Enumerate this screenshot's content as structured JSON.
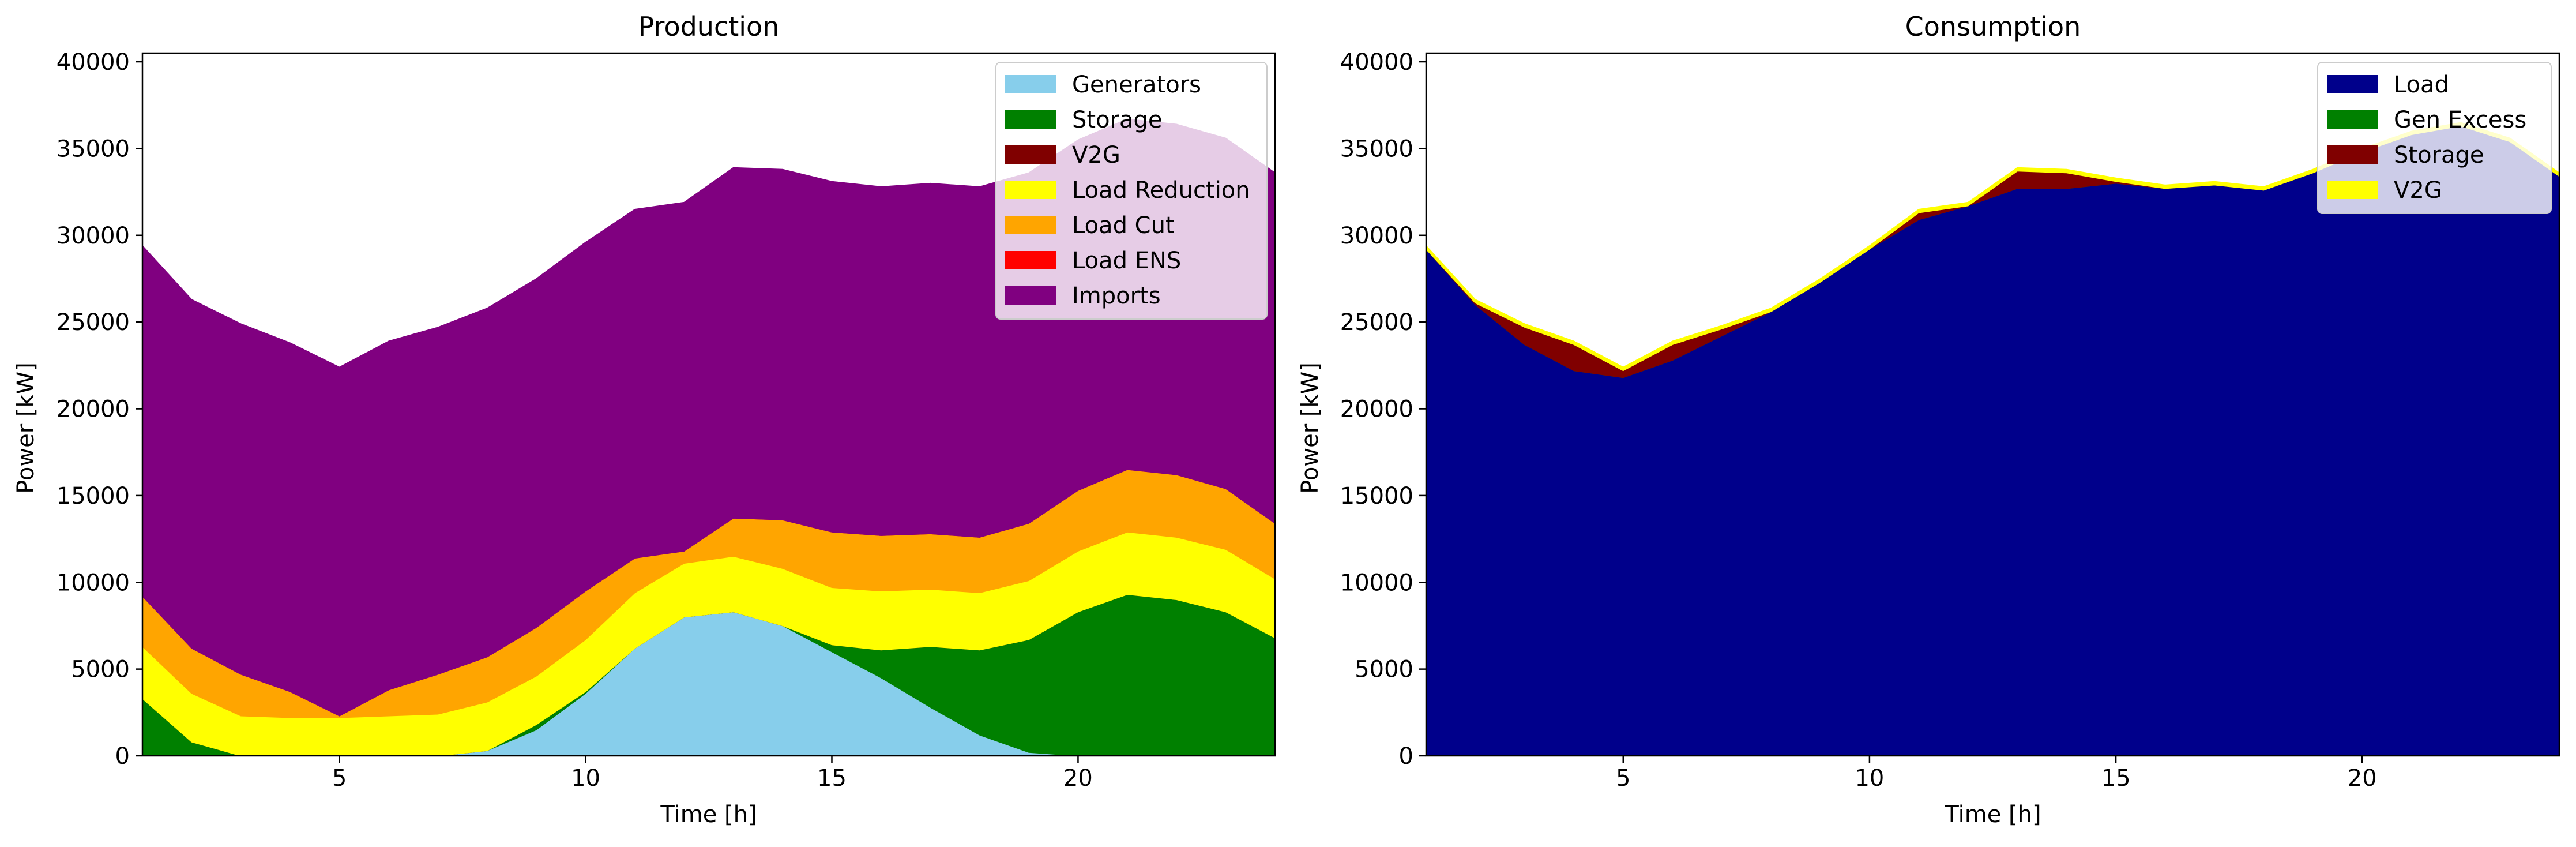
{
  "chart_data": [
    {
      "type": "area",
      "stacked": true,
      "title": "Production",
      "xlabel": "Time [h]",
      "ylabel": "Power [kW]",
      "xlim": [
        1,
        24
      ],
      "ylim": [
        0,
        40500
      ],
      "xticks": [
        5,
        10,
        15,
        20
      ],
      "yticks": [
        0,
        5000,
        10000,
        15000,
        20000,
        25000,
        30000,
        35000,
        40000
      ],
      "legend_position": "top-right",
      "x": [
        1,
        2,
        3,
        4,
        5,
        6,
        7,
        8,
        9,
        10,
        11,
        12,
        13,
        14,
        15,
        16,
        17,
        18,
        19,
        20,
        21,
        22,
        23,
        24
      ],
      "series": [
        {
          "name": "Generators",
          "color": "#87ceeb",
          "values": [
            0,
            0,
            0,
            0,
            0,
            0,
            0,
            300,
            1500,
            3600,
            6200,
            8000,
            8300,
            7500,
            6000,
            4500,
            2800,
            1200,
            200,
            0,
            0,
            0,
            0,
            0
          ]
        },
        {
          "name": "Storage",
          "color": "#008000",
          "values": [
            3300,
            800,
            0,
            0,
            0,
            0,
            0,
            0,
            300,
            100,
            0,
            0,
            0,
            0,
            400,
            1600,
            3500,
            4900,
            6500,
            8300,
            9300,
            9000,
            8300,
            6800
          ]
        },
        {
          "name": "V2G",
          "color": "#800000",
          "values": [
            0,
            0,
            0,
            0,
            0,
            0,
            0,
            0,
            0,
            0,
            0,
            0,
            0,
            0,
            0,
            0,
            0,
            0,
            0,
            0,
            0,
            0,
            0,
            0
          ]
        },
        {
          "name": "Load Reduction",
          "color": "#ffff00",
          "values": [
            3000,
            2800,
            2300,
            2200,
            2200,
            2300,
            2400,
            2800,
            2800,
            3000,
            3200,
            3100,
            3200,
            3300,
            3300,
            3400,
            3300,
            3300,
            3400,
            3500,
            3600,
            3600,
            3600,
            3400
          ]
        },
        {
          "name": "Load Cut",
          "color": "#ffa500",
          "values": [
            2900,
            2600,
            2400,
            1500,
            100,
            1500,
            2300,
            2600,
            2800,
            2800,
            2000,
            700,
            2200,
            2800,
            3200,
            3200,
            3200,
            3200,
            3300,
            3500,
            3600,
            3600,
            3500,
            3200
          ]
        },
        {
          "name": "Load ENS",
          "color": "#ff0000",
          "values": [
            0,
            0,
            0,
            0,
            0,
            0,
            0,
            0,
            0,
            0,
            0,
            0,
            0,
            0,
            0,
            0,
            0,
            0,
            0,
            0,
            0,
            0,
            0,
            0
          ]
        },
        {
          "name": "Imports",
          "color": "#800080",
          "values": [
            20200,
            20100,
            20200,
            20100,
            20100,
            20100,
            20000,
            20100,
            20100,
            20100,
            20100,
            20100,
            20200,
            20200,
            20200,
            20100,
            20200,
            20200,
            20200,
            20200,
            20200,
            20200,
            20200,
            20200
          ]
        }
      ]
    },
    {
      "type": "area",
      "stacked": true,
      "title": "Consumption",
      "xlabel": "Time [h]",
      "ylabel": "Power [kW]",
      "xlim": [
        1,
        24
      ],
      "ylim": [
        0,
        40500
      ],
      "xticks": [
        5,
        10,
        15,
        20
      ],
      "yticks": [
        0,
        5000,
        10000,
        15000,
        20000,
        25000,
        30000,
        35000,
        40000
      ],
      "legend_position": "top-right",
      "x": [
        1,
        2,
        3,
        4,
        5,
        6,
        7,
        8,
        9,
        10,
        11,
        12,
        13,
        14,
        15,
        16,
        17,
        18,
        19,
        20,
        21,
        22,
        23,
        24
      ],
      "series": [
        {
          "name": "Load",
          "color": "#00008b",
          "values": [
            29200,
            26000,
            23700,
            22200,
            21800,
            22800,
            24200,
            25600,
            27300,
            29200,
            30900,
            31700,
            32700,
            32700,
            33000,
            32700,
            32900,
            32600,
            33600,
            34800,
            35800,
            36300,
            35400,
            33400
          ]
        },
        {
          "name": "Gen Excess",
          "color": "#008000",
          "values": [
            0,
            0,
            0,
            0,
            0,
            0,
            0,
            0,
            0,
            0,
            0,
            0,
            0,
            0,
            0,
            0,
            0,
            0,
            0,
            0,
            0,
            0,
            0,
            0
          ]
        },
        {
          "name": "Storage",
          "color": "#800000",
          "values": [
            0,
            100,
            1000,
            1500,
            400,
            900,
            400,
            0,
            0,
            0,
            400,
            0,
            1000,
            900,
            100,
            0,
            0,
            0,
            0,
            0,
            0,
            0,
            0,
            0
          ]
        },
        {
          "name": "V2G",
          "color": "#ffff00",
          "values": [
            200,
            200,
            200,
            200,
            200,
            200,
            200,
            200,
            200,
            200,
            200,
            200,
            200,
            200,
            200,
            200,
            200,
            200,
            200,
            200,
            200,
            200,
            200,
            200
          ]
        }
      ]
    }
  ]
}
